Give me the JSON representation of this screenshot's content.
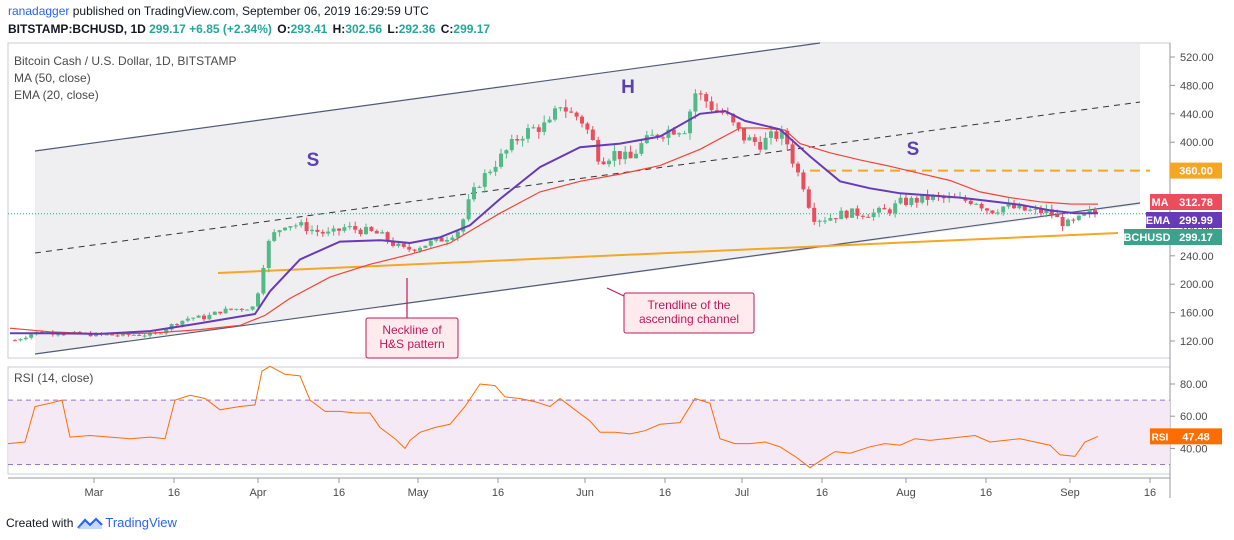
{
  "header": {
    "user": "ranadagger",
    "published": "published on TradingView.com, September 06, 2019 16:29:59 UTC",
    "symbol": "BITSTAMP:BCHUSD, 1D",
    "last": "299.17",
    "change": "+6.85 (+2.34%)",
    "o_label": "O:",
    "o": "293.41",
    "h_label": "H:",
    "h": "302.56",
    "l_label": "L:",
    "l": "292.36",
    "c_label": "C:",
    "c": "299.17"
  },
  "legend": {
    "title": "Bitcoin Cash / U.S. Dollar, 1D, BITSTAMP",
    "ma": "MA (50, close)",
    "ema": "EMA (20, close)",
    "rsi": "RSI (14, close)"
  },
  "footer": {
    "created": "Created with",
    "brand": "TradingView"
  },
  "colors": {
    "up": "#53b987",
    "down": "#eb4d5c",
    "ma": "#f44336",
    "ema": "#673ab7",
    "rsi": "#ff6d00",
    "trend": "#f5a623",
    "channel": "#505a78",
    "annotation_red": "#c2185b"
  },
  "chart_data": [
    {
      "type": "candlestick",
      "title": "Bitcoin Cash / U.S. Dollar, 1D, BITSTAMP",
      "x_ticks": [
        "Mar",
        "16",
        "Apr",
        "16",
        "May",
        "16",
        "Jun",
        "16",
        "Jul",
        "16",
        "Aug",
        "16",
        "Sep",
        "16"
      ],
      "y_ticks": [
        "520.00",
        "480.00",
        "440.00",
        "400.00",
        "360.00",
        "320.00",
        "280.00",
        "240.00",
        "200.00",
        "160.00",
        "120.00"
      ],
      "ylim": [
        95,
        530
      ],
      "price_path": [
        [
          15,
          121
        ],
        [
          35,
          132
        ],
        [
          55,
          132
        ],
        [
          75,
          130
        ],
        [
          95,
          129
        ],
        [
          115,
          128
        ],
        [
          135,
          129
        ],
        [
          155,
          129
        ],
        [
          175,
          145
        ],
        [
          190,
          153
        ],
        [
          205,
          153
        ],
        [
          220,
          162
        ],
        [
          240,
          166
        ],
        [
          255,
          168
        ],
        [
          262,
          220
        ],
        [
          270,
          265
        ],
        [
          285,
          285
        ],
        [
          300,
          283
        ],
        [
          315,
          275
        ],
        [
          330,
          270
        ],
        [
          345,
          280
        ],
        [
          365,
          275
        ],
        [
          380,
          270
        ],
        [
          395,
          255
        ],
        [
          405,
          248
        ],
        [
          415,
          252
        ],
        [
          430,
          258
        ],
        [
          445,
          265
        ],
        [
          460,
          278
        ],
        [
          470,
          320
        ],
        [
          480,
          345
        ],
        [
          495,
          370
        ],
        [
          505,
          385
        ],
        [
          520,
          410
        ],
        [
          535,
          420
        ],
        [
          550,
          425
        ],
        [
          560,
          455
        ],
        [
          570,
          440
        ],
        [
          580,
          435
        ],
        [
          590,
          410
        ],
        [
          600,
          375
        ],
        [
          615,
          385
        ],
        [
          630,
          375
        ],
        [
          640,
          395
        ],
        [
          655,
          410
        ],
        [
          670,
          418
        ],
        [
          685,
          420
        ],
        [
          695,
          470
        ],
        [
          705,
          460
        ],
        [
          715,
          445
        ],
        [
          725,
          440
        ],
        [
          735,
          420
        ],
        [
          745,
          405
        ],
        [
          760,
          398
        ],
        [
          775,
          410
        ],
        [
          785,
          408
        ],
        [
          795,
          365
        ],
        [
          805,
          335
        ],
        [
          812,
          295
        ],
        [
          822,
          292
        ],
        [
          832,
          295
        ],
        [
          845,
          300
        ],
        [
          860,
          300
        ],
        [
          875,
          300
        ],
        [
          890,
          305
        ],
        [
          900,
          315
        ],
        [
          915,
          318
        ],
        [
          930,
          322
        ],
        [
          945,
          320
        ],
        [
          960,
          318
        ],
        [
          975,
          318
        ],
        [
          990,
          303
        ],
        [
          1005,
          310
        ],
        [
          1020,
          305
        ],
        [
          1035,
          302
        ],
        [
          1050,
          302
        ],
        [
          1060,
          288
        ],
        [
          1070,
          284
        ],
        [
          1080,
          292
        ],
        [
          1090,
          300
        ],
        [
          1098,
          299
        ]
      ],
      "ma50_path": [
        [
          10,
          138
        ],
        [
          50,
          133
        ],
        [
          100,
          130
        ],
        [
          150,
          131
        ],
        [
          200,
          136
        ],
        [
          240,
          142
        ],
        [
          265,
          156
        ],
        [
          290,
          180
        ],
        [
          330,
          210
        ],
        [
          370,
          228
        ],
        [
          410,
          242
        ],
        [
          450,
          258
        ],
        [
          500,
          300
        ],
        [
          540,
          330
        ],
        [
          580,
          345
        ],
        [
          620,
          355
        ],
        [
          660,
          367
        ],
        [
          700,
          390
        ],
        [
          740,
          420
        ],
        [
          760,
          420
        ],
        [
          785,
          417
        ],
        [
          800,
          398
        ],
        [
          830,
          385
        ],
        [
          860,
          375
        ],
        [
          890,
          366
        ],
        [
          920,
          356
        ],
        [
          950,
          346
        ],
        [
          980,
          330
        ],
        [
          1010,
          322
        ],
        [
          1040,
          316
        ],
        [
          1070,
          313
        ],
        [
          1098,
          312.78
        ]
      ],
      "ema20_path": [
        [
          10,
          131
        ],
        [
          50,
          131
        ],
        [
          100,
          130
        ],
        [
          150,
          134
        ],
        [
          200,
          145
        ],
        [
          255,
          158
        ],
        [
          270,
          190
        ],
        [
          300,
          235
        ],
        [
          340,
          260
        ],
        [
          380,
          262
        ],
        [
          410,
          258
        ],
        [
          440,
          266
        ],
        [
          470,
          283
        ],
        [
          500,
          320
        ],
        [
          540,
          365
        ],
        [
          580,
          393
        ],
        [
          620,
          398
        ],
        [
          660,
          408
        ],
        [
          700,
          440
        ],
        [
          725,
          444
        ],
        [
          745,
          430
        ],
        [
          780,
          418
        ],
        [
          810,
          380
        ],
        [
          840,
          345
        ],
        [
          870,
          335
        ],
        [
          900,
          328
        ],
        [
          930,
          325
        ],
        [
          960,
          322
        ],
        [
          990,
          317
        ],
        [
          1020,
          312
        ],
        [
          1050,
          304
        ],
        [
          1075,
          300
        ],
        [
          1098,
          299.99
        ]
      ],
      "ma_last": "312.78",
      "ema_last": "299.99",
      "last_price": "299.17",
      "ma_label": "MA",
      "ema_label": "EMA",
      "price_label": "BCHUSD",
      "resistance_level": 360,
      "resistance_label": "360.00",
      "pattern_labels": [
        "S",
        "H",
        "S"
      ],
      "annotations": [
        {
          "text": "Neckline of H&S pattern",
          "lines": [
            "Neckline of",
            "H&S pattern"
          ]
        },
        {
          "text": "Trendline of the ascending channel",
          "lines": [
            "Trendline of the",
            "ascending channel"
          ]
        }
      ]
    },
    {
      "type": "line",
      "title": "RSI (14, close)",
      "y_ticks": [
        "80.00",
        "60.00",
        "40.00"
      ],
      "band": [
        30,
        70
      ],
      "ylim": [
        20,
        95
      ],
      "rsi_path": [
        [
          8,
          43
        ],
        [
          25,
          44
        ],
        [
          35,
          66
        ],
        [
          50,
          68
        ],
        [
          62,
          70
        ],
        [
          70,
          47
        ],
        [
          90,
          48
        ],
        [
          110,
          47
        ],
        [
          130,
          46
        ],
        [
          150,
          47
        ],
        [
          165,
          46
        ],
        [
          175,
          70
        ],
        [
          190,
          73
        ],
        [
          205,
          71
        ],
        [
          220,
          64
        ],
        [
          240,
          66
        ],
        [
          255,
          67
        ],
        [
          262,
          88
        ],
        [
          270,
          91
        ],
        [
          285,
          86
        ],
        [
          300,
          85
        ],
        [
          310,
          70
        ],
        [
          325,
          63
        ],
        [
          340,
          63
        ],
        [
          355,
          62
        ],
        [
          370,
          62
        ],
        [
          380,
          53
        ],
        [
          395,
          46
        ],
        [
          405,
          40
        ],
        [
          410,
          45
        ],
        [
          420,
          50
        ],
        [
          435,
          53
        ],
        [
          450,
          55
        ],
        [
          465,
          66
        ],
        [
          480,
          80
        ],
        [
          495,
          79
        ],
        [
          505,
          72
        ],
        [
          520,
          71
        ],
        [
          535,
          69
        ],
        [
          550,
          66
        ],
        [
          560,
          71
        ],
        [
          575,
          64
        ],
        [
          590,
          57
        ],
        [
          600,
          50
        ],
        [
          615,
          50
        ],
        [
          630,
          49
        ],
        [
          645,
          51
        ],
        [
          660,
          55
        ],
        [
          680,
          56
        ],
        [
          695,
          71
        ],
        [
          710,
          68
        ],
        [
          720,
          46
        ],
        [
          735,
          43
        ],
        [
          750,
          43
        ],
        [
          765,
          44
        ],
        [
          780,
          41
        ],
        [
          795,
          35
        ],
        [
          810,
          28
        ],
        [
          822,
          33
        ],
        [
          835,
          38
        ],
        [
          850,
          37
        ],
        [
          870,
          41
        ],
        [
          885,
          43
        ],
        [
          900,
          42
        ],
        [
          915,
          46
        ],
        [
          930,
          45
        ],
        [
          945,
          46
        ],
        [
          960,
          47
        ],
        [
          975,
          48
        ],
        [
          990,
          44
        ],
        [
          1005,
          45
        ],
        [
          1020,
          46
        ],
        [
          1035,
          44
        ],
        [
          1050,
          42
        ],
        [
          1060,
          36
        ],
        [
          1075,
          35
        ],
        [
          1085,
          44
        ],
        [
          1098,
          47.48
        ]
      ],
      "rsi_last": "47.48",
      "rsi_label": "RSI"
    }
  ]
}
